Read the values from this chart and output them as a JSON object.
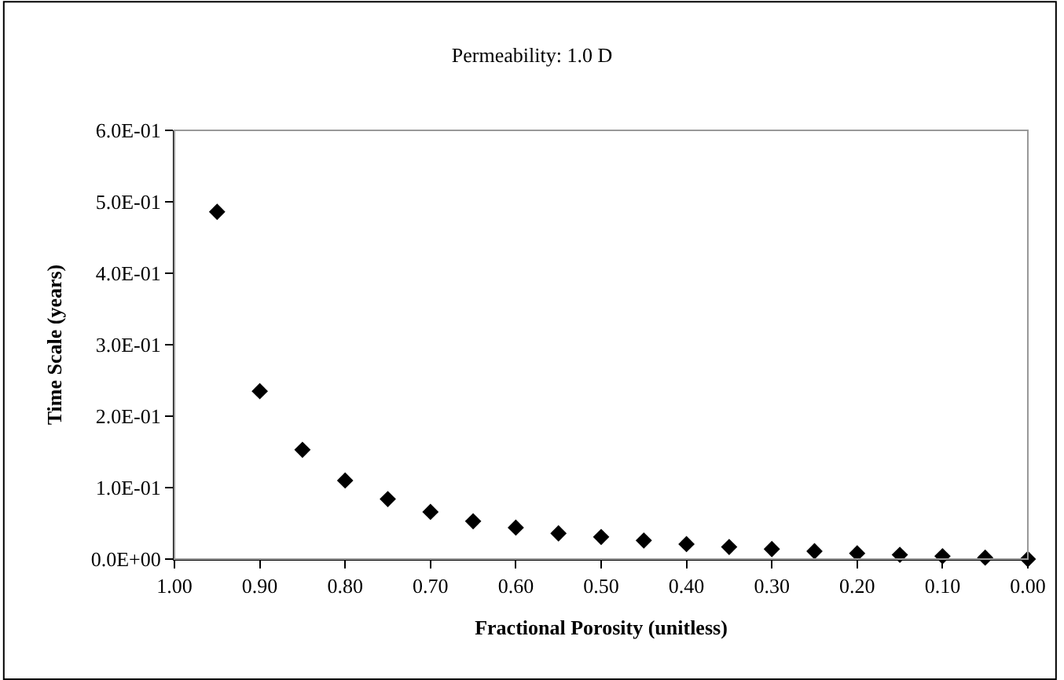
{
  "chart_data": {
    "type": "scatter",
    "title": "Permeability: 1.0 D",
    "xlabel": "Fractional Porosity (unitless)",
    "ylabel": "Time Scale (years)",
    "x": [
      0.95,
      0.9,
      0.85,
      0.8,
      0.75,
      0.7,
      0.65,
      0.6,
      0.55,
      0.5,
      0.45,
      0.4,
      0.35,
      0.3,
      0.25,
      0.2,
      0.15,
      0.1,
      0.05,
      0.0
    ],
    "series": [
      {
        "color": "#000000",
        "values": [
          0.486,
          0.235,
          0.153,
          0.11,
          0.084,
          0.066,
          0.053,
          0.044,
          0.036,
          0.031,
          0.026,
          0.021,
          0.017,
          0.014,
          0.011,
          0.008,
          0.006,
          0.004,
          0.002,
          0.0
        ]
      }
    ],
    "xlim": [
      1.0,
      0.0
    ],
    "xticks": [
      {
        "value": 1.0,
        "label": "1.00"
      },
      {
        "value": 0.9,
        "label": "0.90"
      },
      {
        "value": 0.8,
        "label": "0.80"
      },
      {
        "value": 0.7,
        "label": "0.70"
      },
      {
        "value": 0.6,
        "label": "0.60"
      },
      {
        "value": 0.5,
        "label": "0.50"
      },
      {
        "value": 0.4,
        "label": "0.40"
      },
      {
        "value": 0.3,
        "label": "0.30"
      },
      {
        "value": 0.2,
        "label": "0.20"
      },
      {
        "value": 0.1,
        "label": "0.10"
      },
      {
        "value": 0.0,
        "label": "0.00"
      }
    ],
    "ylim": [
      0,
      0.6
    ],
    "yticks": [
      {
        "value": 0,
        "label": "0.0E+00"
      },
      {
        "value": 0.1,
        "label": "1.0E-01"
      },
      {
        "value": 0.2,
        "label": "2.0E-01"
      },
      {
        "value": 0.3,
        "label": "3.0E-01"
      },
      {
        "value": 0.4,
        "label": "4.0E-01"
      },
      {
        "value": 0.5,
        "label": "5.0E-01"
      },
      {
        "value": 0.6,
        "label": "6.0E-01"
      }
    ],
    "marker": "diamond",
    "grid": false
  }
}
